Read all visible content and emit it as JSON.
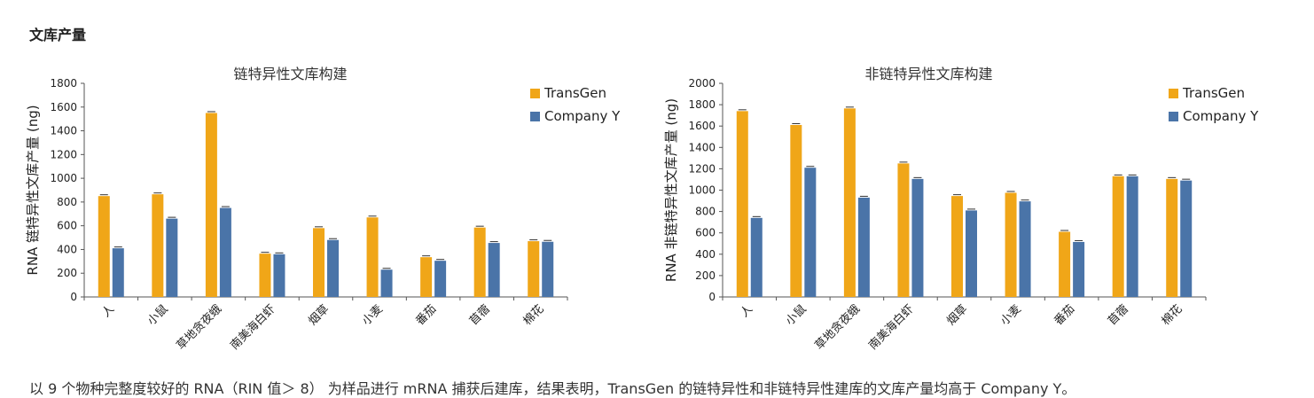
{
  "section": {
    "title": "文库产量"
  },
  "caption": "以 9 个物种完整度较好的 RNA（RIN 值＞ 8） 为样品进行 mRNA 捕获后建库，结果表明，TransGen 的链特异性和非链特异性建库的文库产量均高于 Company Y。",
  "colors": {
    "transgen": "#f0a618",
    "companyy": "#4a74a8"
  },
  "chart_data": [
    {
      "type": "bar",
      "title": "链特异性文库构建",
      "xlabel": "",
      "ylabel": "RNA 链特异性文库产量 (ng)",
      "ylim": [
        0,
        1800
      ],
      "yticks": [
        0,
        200,
        400,
        600,
        800,
        1000,
        1200,
        1400,
        1600,
        1800
      ],
      "categories": [
        "人",
        "小鼠",
        "草地贪夜蛾",
        "南美海白虾",
        "烟草",
        "小麦",
        "番茄",
        "苜蓿",
        "棉花"
      ],
      "series": [
        {
          "name": "TransGen",
          "values": [
            850,
            865,
            1550,
            365,
            580,
            670,
            335,
            585,
            470
          ]
        },
        {
          "name": "Company Y",
          "values": [
            410,
            660,
            750,
            360,
            480,
            230,
            305,
            455,
            465
          ]
        }
      ],
      "legend": "top-right",
      "grid": false
    },
    {
      "type": "bar",
      "title": "非链特异性文库构建",
      "xlabel": "",
      "ylabel": "RNA 非链特异性文库产量 (ng)",
      "ylim": [
        0,
        2000
      ],
      "yticks": [
        0,
        200,
        400,
        600,
        800,
        1000,
        1200,
        1400,
        1600,
        1800,
        2000
      ],
      "categories": [
        "人",
        "小鼠",
        "草地贪夜蛾",
        "南美海白虾",
        "烟草",
        "小麦",
        "番茄",
        "苜蓿",
        "棉花"
      ],
      "series": [
        {
          "name": "TransGen",
          "values": [
            1740,
            1610,
            1765,
            1250,
            945,
            975,
            610,
            1130,
            1105
          ]
        },
        {
          "name": "Company Y",
          "values": [
            740,
            1210,
            930,
            1105,
            810,
            895,
            515,
            1130,
            1090
          ]
        }
      ],
      "legend": "top-right",
      "grid": false
    }
  ]
}
